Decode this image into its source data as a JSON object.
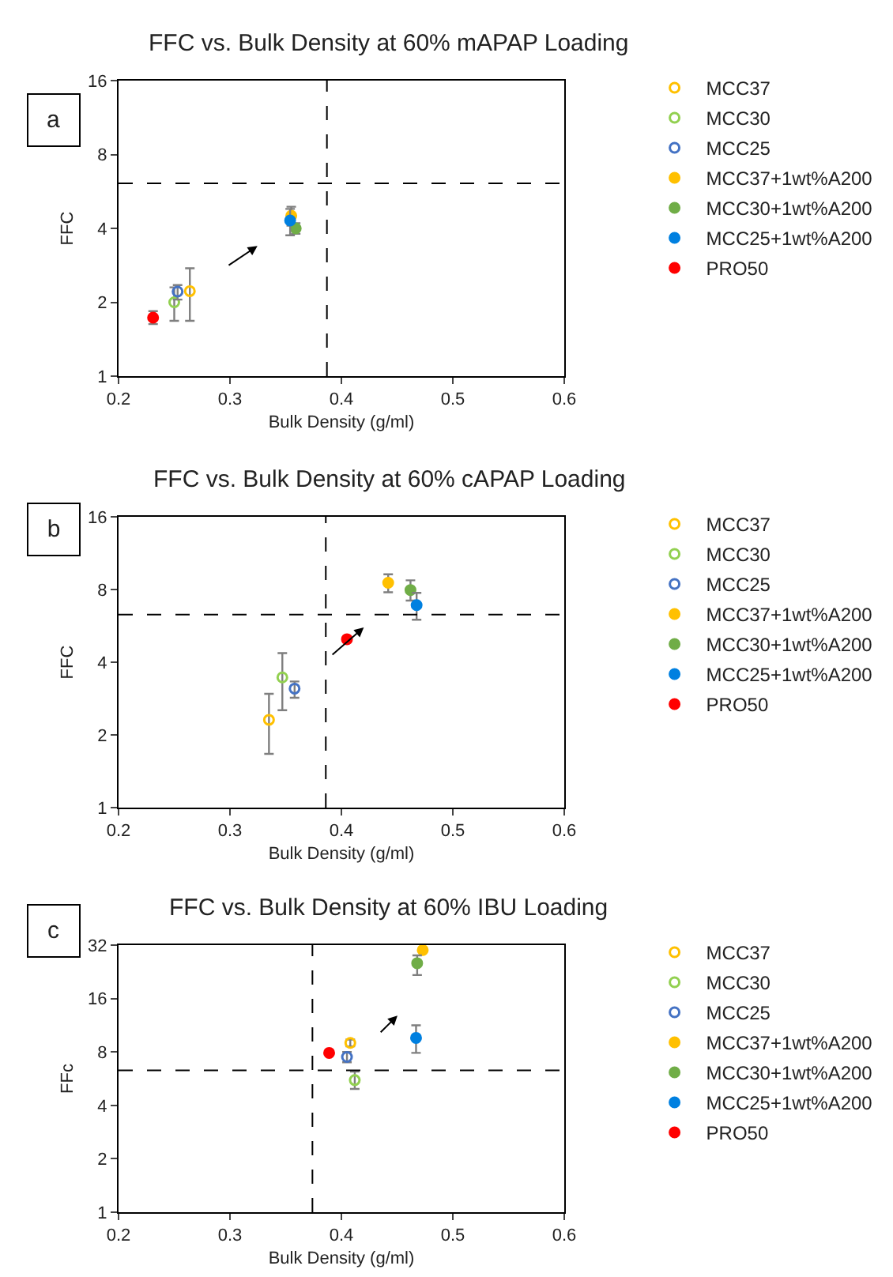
{
  "chart_data": [
    {
      "type": "scatter",
      "title": "FFC vs. Bulk Density at 60% mAPAP Loading",
      "xlabel": "Bulk Density (g/ml)",
      "ylabel": "FFC",
      "annotations": [
        "a"
      ],
      "xlim": [
        0.2,
        0.6
      ],
      "xticks": [
        0.2,
        0.3,
        0.4,
        0.5,
        0.6
      ],
      "ylim": [
        1,
        16
      ],
      "yticks": [
        1,
        2,
        4,
        8,
        16
      ],
      "log": "y",
      "grid": false,
      "legend": "right",
      "ref_lines": [
        {
          "axis": "x",
          "value": 0.387,
          "color": "#000000",
          "line_style": "dashed"
        },
        {
          "axis": "y",
          "value": 6.1,
          "color": "#000000",
          "line_style": "dashed"
        }
      ],
      "series": [
        {
          "name": "MCC37",
          "color": "#ffc000",
          "marker": "circle-open",
          "x": [
            0.264
          ],
          "values": [
            2.22
          ],
          "errors": [
            [
              1.68,
              2.75
            ]
          ]
        },
        {
          "name": "MCC30",
          "color": "#92d050",
          "marker": "circle-open",
          "x": [
            0.25
          ],
          "values": [
            2.0
          ],
          "errors": [
            [
              1.68,
              2.3
            ]
          ]
        },
        {
          "name": "MCC25",
          "color": "#4472c4",
          "marker": "circle-open",
          "x": [
            0.253
          ],
          "values": [
            2.21
          ],
          "errors": [
            [
              2.05,
              2.35
            ]
          ]
        },
        {
          "name": "MCC37+1wt%A200",
          "color": "#ffc000",
          "marker": "circle",
          "x": [
            0.355
          ],
          "values": [
            4.5
          ],
          "errors": [
            [
              4.1,
              4.9
            ]
          ]
        },
        {
          "name": "MCC30+1wt%A200",
          "color": "#70ad47",
          "marker": "circle",
          "x": [
            0.359
          ],
          "values": [
            4.0
          ],
          "errors": [
            [
              3.8,
              4.2
            ]
          ]
        },
        {
          "name": "MCC25+1wt%A200",
          "color": "#0080e0",
          "marker": "circle",
          "x": [
            0.354
          ],
          "values": [
            4.31
          ],
          "errors": [
            [
              3.75,
              4.8
            ]
          ]
        },
        {
          "name": "PRO50",
          "color": "#ff0000",
          "marker": "circle",
          "x": [
            0.231
          ],
          "values": [
            1.73
          ],
          "errors": [
            [
              1.63,
              1.84
            ]
          ]
        }
      ]
    },
    {
      "type": "scatter",
      "title": "FFC vs. Bulk Density at 60% cAPAP Loading",
      "xlabel": "Bulk Density (g/ml)",
      "ylabel": "FFC",
      "annotations": [
        "b"
      ],
      "xlim": [
        0.2,
        0.6
      ],
      "xticks": [
        0.2,
        0.3,
        0.4,
        0.5,
        0.6
      ],
      "ylim": [
        1,
        16
      ],
      "yticks": [
        1,
        2,
        4,
        8,
        16
      ],
      "log": "y",
      "grid": false,
      "legend": "right",
      "ref_lines": [
        {
          "axis": "x",
          "value": 0.386,
          "color": "#000000",
          "line_style": "dashed"
        },
        {
          "axis": "y",
          "value": 6.3,
          "color": "#000000",
          "line_style": "dashed"
        }
      ],
      "series": [
        {
          "name": "MCC37",
          "color": "#ffc000",
          "marker": "circle-open",
          "x": [
            0.335
          ],
          "values": [
            2.31
          ],
          "errors": [
            [
              1.67,
              2.96
            ]
          ]
        },
        {
          "name": "MCC30",
          "color": "#92d050",
          "marker": "circle-open",
          "x": [
            0.347
          ],
          "values": [
            3.46
          ],
          "errors": [
            [
              2.53,
              4.36
            ]
          ]
        },
        {
          "name": "MCC25",
          "color": "#4472c4",
          "marker": "circle-open",
          "x": [
            0.358
          ],
          "values": [
            3.11
          ],
          "errors": [
            [
              2.85,
              3.33
            ]
          ]
        },
        {
          "name": "MCC37+1wt%A200",
          "color": "#ffc000",
          "marker": "circle",
          "x": [
            0.442
          ],
          "values": [
            8.53
          ],
          "errors": [
            [
              7.79,
              9.25
            ]
          ]
        },
        {
          "name": "MCC30+1wt%A200",
          "color": "#70ad47",
          "marker": "circle",
          "x": [
            0.462
          ],
          "values": [
            7.96
          ],
          "errors": [
            [
              7.2,
              8.73
            ]
          ]
        },
        {
          "name": "MCC25+1wt%A200",
          "color": "#0080e0",
          "marker": "circle",
          "x": [
            0.4675
          ],
          "values": [
            6.89
          ],
          "errors": [
            [
              6.0,
              7.75
            ]
          ]
        },
        {
          "name": "PRO50",
          "color": "#ff0000",
          "marker": "circle",
          "x": [
            0.405
          ],
          "values": [
            4.98
          ],
          "errors": [
            [
              4.85,
              5.1
            ]
          ]
        }
      ]
    },
    {
      "type": "scatter",
      "title": "FFC vs. Bulk Density at 60% IBU Loading",
      "xlabel": "Bulk Density (g/ml)",
      "ylabel": "FFc",
      "annotations": [
        "c"
      ],
      "xlim": [
        0.2,
        0.6
      ],
      "xticks": [
        0.2,
        0.3,
        0.4,
        0.5,
        0.6
      ],
      "ylim": [
        1,
        32
      ],
      "yticks": [
        1,
        2,
        4,
        8,
        16,
        32
      ],
      "log": "y",
      "grid": false,
      "legend": "right",
      "ref_lines": [
        {
          "axis": "x",
          "value": 0.374,
          "color": "#000000",
          "line_style": "dashed"
        },
        {
          "axis": "y",
          "value": 6.3,
          "color": "#000000",
          "line_style": "dashed"
        }
      ],
      "series": [
        {
          "name": "MCC37",
          "color": "#ffc000",
          "marker": "circle-open",
          "x": [
            0.408
          ],
          "values": [
            9.0
          ],
          "errors": [
            [
              8.6,
              9.4
            ]
          ]
        },
        {
          "name": "MCC30",
          "color": "#92d050",
          "marker": "circle-open",
          "x": [
            0.412
          ],
          "values": [
            5.55
          ],
          "errors": [
            [
              4.95,
              6.2
            ]
          ]
        },
        {
          "name": "MCC25",
          "color": "#4472c4",
          "marker": "circle-open",
          "x": [
            0.405
          ],
          "values": [
            7.5
          ],
          "errors": [
            [
              7.0,
              8.0
            ]
          ]
        },
        {
          "name": "MCC37+1wt%A200",
          "color": "#ffc000",
          "marker": "circle",
          "x": [
            0.473
          ],
          "values": [
            30
          ]
        },
        {
          "name": "MCC30+1wt%A200",
          "color": "#70ad47",
          "marker": "circle",
          "x": [
            0.468
          ],
          "values": [
            25.3
          ],
          "errors": [
            [
              21.7,
              28
            ]
          ]
        },
        {
          "name": "MCC25+1wt%A200",
          "color": "#0080e0",
          "marker": "circle",
          "x": [
            0.467
          ],
          "values": [
            9.6
          ],
          "errors": [
            [
              7.9,
              11.3
            ]
          ]
        },
        {
          "name": "PRO50",
          "color": "#ff0000",
          "marker": "circle",
          "x": [
            0.389
          ],
          "values": [
            7.9
          ]
        }
      ]
    }
  ]
}
